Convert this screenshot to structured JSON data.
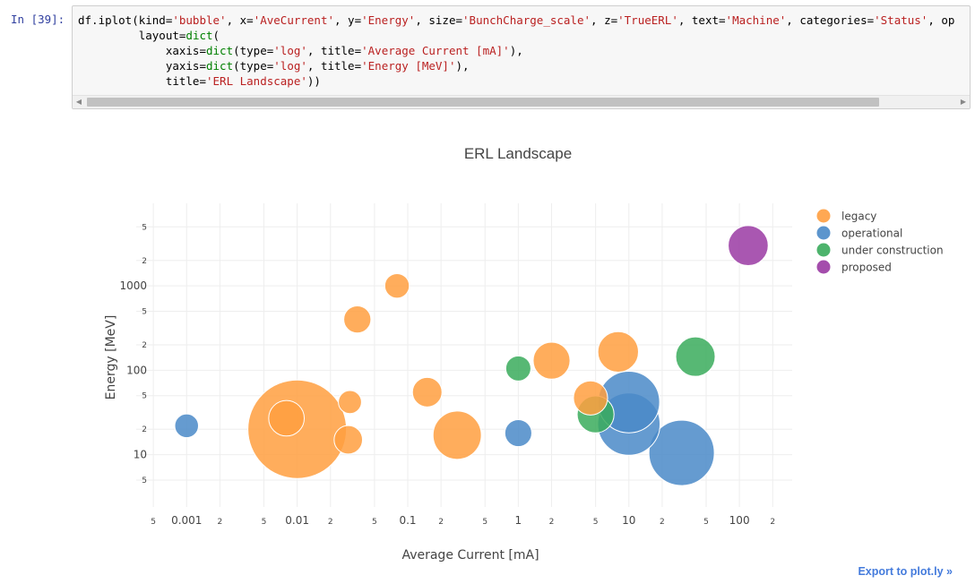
{
  "cell": {
    "prompt": "In [39]:",
    "code_lines": [
      [
        [
          "df.iplot(kind=",
          ""
        ],
        [
          "'bubble'",
          "s"
        ],
        [
          ", x=",
          ""
        ],
        [
          "'AveCurrent'",
          "s"
        ],
        [
          ", y=",
          ""
        ],
        [
          "'Energy'",
          "s"
        ],
        [
          ", size=",
          ""
        ],
        [
          "'BunchCharge_scale'",
          "s"
        ],
        [
          ", z=",
          ""
        ],
        [
          "'TrueERL'",
          "s"
        ],
        [
          ", text=",
          ""
        ],
        [
          "'Machine'",
          "s"
        ],
        [
          ", categories=",
          ""
        ],
        [
          "'Status'",
          "s"
        ],
        [
          ", op",
          ""
        ]
      ],
      [
        [
          "         layout=",
          ""
        ],
        [
          "dict",
          "k"
        ],
        [
          "(",
          ""
        ]
      ],
      [
        [
          "             xaxis=",
          ""
        ],
        [
          "dict",
          "k"
        ],
        [
          "(type=",
          ""
        ],
        [
          "'log'",
          "s"
        ],
        [
          ", title=",
          ""
        ],
        [
          "'Average Current [mA]'",
          "s"
        ],
        [
          "),",
          ""
        ]
      ],
      [
        [
          "             yaxis=",
          ""
        ],
        [
          "dict",
          "k"
        ],
        [
          "(type=",
          ""
        ],
        [
          "'log'",
          "s"
        ],
        [
          ", title=",
          ""
        ],
        [
          "'Energy [MeV]'",
          "s"
        ],
        [
          "),",
          ""
        ]
      ],
      [
        [
          "             title=",
          ""
        ],
        [
          "'ERL Landscape'",
          "s"
        ],
        [
          "))",
          ""
        ]
      ]
    ]
  },
  "chart_data": {
    "type": "scatter",
    "title": "ERL Landscape",
    "xlabel": "Average Current [mA]",
    "ylabel": "Energy [MeV]",
    "xscale": "log",
    "yscale": "log",
    "xlim": [
      0.00035,
      300
    ],
    "ylim": [
      2.4,
      9500
    ],
    "grid": true,
    "legend_position": "right",
    "x_ticks": [
      {
        "v": 0.0005,
        "l": "5"
      },
      {
        "v": 0.001,
        "l": "0.001"
      },
      {
        "v": 0.002,
        "l": "2"
      },
      {
        "v": 0.005,
        "l": "5"
      },
      {
        "v": 0.01,
        "l": "0.01"
      },
      {
        "v": 0.02,
        "l": "2"
      },
      {
        "v": 0.05,
        "l": "5"
      },
      {
        "v": 0.1,
        "l": "0.1"
      },
      {
        "v": 0.2,
        "l": "2"
      },
      {
        "v": 0.5,
        "l": "5"
      },
      {
        "v": 1,
        "l": "1"
      },
      {
        "v": 2,
        "l": "2"
      },
      {
        "v": 5,
        "l": "5"
      },
      {
        "v": 10,
        "l": "10"
      },
      {
        "v": 20,
        "l": "2"
      },
      {
        "v": 50,
        "l": "5"
      },
      {
        "v": 100,
        "l": "100"
      },
      {
        "v": 200,
        "l": "2"
      }
    ],
    "y_ticks": [
      {
        "v": 5,
        "l": "5"
      },
      {
        "v": 10,
        "l": "10"
      },
      {
        "v": 20,
        "l": "2"
      },
      {
        "v": 50,
        "l": "5"
      },
      {
        "v": 100,
        "l": "100"
      },
      {
        "v": 200,
        "l": "2"
      },
      {
        "v": 500,
        "l": "5"
      },
      {
        "v": 1000,
        "l": "1000"
      },
      {
        "v": 2000,
        "l": "2"
      },
      {
        "v": 5000,
        "l": "5"
      }
    ],
    "series": [
      {
        "name": "legacy",
        "color": "#ff9f40",
        "points": [
          {
            "x": 0.01,
            "y": 20,
            "size": 1.0
          },
          {
            "x": 0.008,
            "y": 27,
            "size": 0.13
          },
          {
            "x": 0.029,
            "y": 15,
            "size": 0.083
          },
          {
            "x": 0.03,
            "y": 42,
            "size": 0.055
          },
          {
            "x": 0.035,
            "y": 400,
            "size": 0.076
          },
          {
            "x": 0.08,
            "y": 1000,
            "size": 0.062
          },
          {
            "x": 0.15,
            "y": 55,
            "size": 0.09
          },
          {
            "x": 0.28,
            "y": 17,
            "size": 0.24
          },
          {
            "x": 2.0,
            "y": 130,
            "size": 0.14
          },
          {
            "x": 4.5,
            "y": 47,
            "size": 0.12
          },
          {
            "x": 8,
            "y": 165,
            "size": 0.17
          }
        ]
      },
      {
        "name": "operational",
        "color": "#4a89c8",
        "points": [
          {
            "x": 0.001,
            "y": 22,
            "size": 0.058
          },
          {
            "x": 1.0,
            "y": 18,
            "size": 0.075
          },
          {
            "x": 10,
            "y": 42,
            "size": 0.39
          },
          {
            "x": 10,
            "y": 23,
            "size": 0.4
          },
          {
            "x": 30,
            "y": 10.5,
            "size": 0.44
          }
        ]
      },
      {
        "name": "under construction",
        "color": "#3aab5c",
        "points": [
          {
            "x": 1.0,
            "y": 105,
            "size": 0.065
          },
          {
            "x": 5,
            "y": 30,
            "size": 0.14
          },
          {
            "x": 40,
            "y": 145,
            "size": 0.16
          }
        ]
      },
      {
        "name": "proposed",
        "color": "#9a3aa3",
        "points": [
          {
            "x": 120,
            "y": 3000,
            "size": 0.165
          }
        ]
      }
    ]
  },
  "export": {
    "label": "Export to plot.ly »"
  }
}
